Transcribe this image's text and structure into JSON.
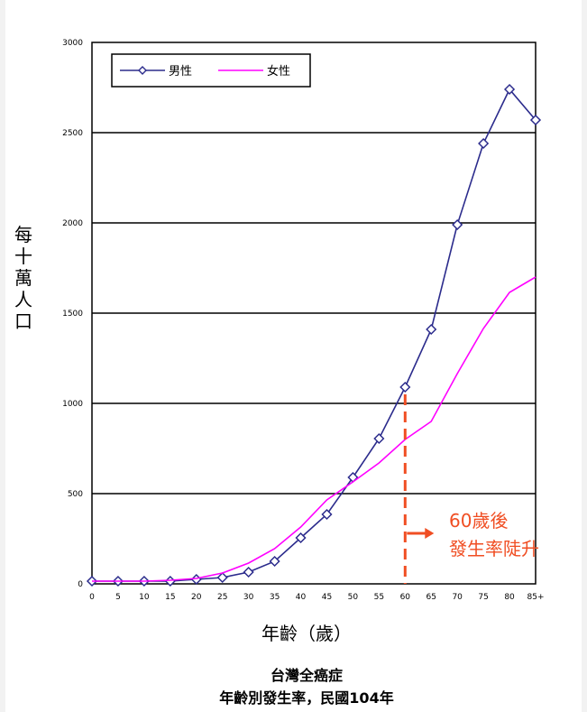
{
  "chart_data": {
    "type": "line",
    "title": "",
    "ylabel": "每十萬人口",
    "xlabel": "年齡（歲）",
    "x": [
      "0",
      "5",
      "10",
      "15",
      "20",
      "25",
      "30",
      "35",
      "40",
      "45",
      "50",
      "55",
      "60",
      "65",
      "70",
      "75",
      "80",
      "85+"
    ],
    "yticks": [
      "0",
      "500",
      "1000",
      "1500",
      "2000",
      "2500",
      "3000"
    ],
    "ylim": [
      0,
      3000
    ],
    "grid": "horizontal",
    "legend_position": "top-left",
    "series": [
      {
        "name": "男性",
        "color": "#2b2b8c",
        "marker": "diamond",
        "values": [
          15,
          15,
          15,
          15,
          25,
          35,
          65,
          125,
          255,
          385,
          590,
          805,
          1090,
          1410,
          1990,
          2440,
          2740,
          2570
        ]
      },
      {
        "name": "女性",
        "color": "#ff00ff",
        "marker": "none",
        "values": [
          15,
          15,
          15,
          20,
          30,
          60,
          115,
          195,
          315,
          465,
          565,
          670,
          800,
          900,
          1165,
          1415,
          1615,
          1700
        ]
      }
    ],
    "annotation": {
      "line1": "60歲後",
      "line2": "發生率陡升",
      "at_x": "60",
      "color": "#f04e23"
    }
  },
  "caption": {
    "line1": "台灣全癌症",
    "line2": "年齡別發生率，民國104年"
  }
}
